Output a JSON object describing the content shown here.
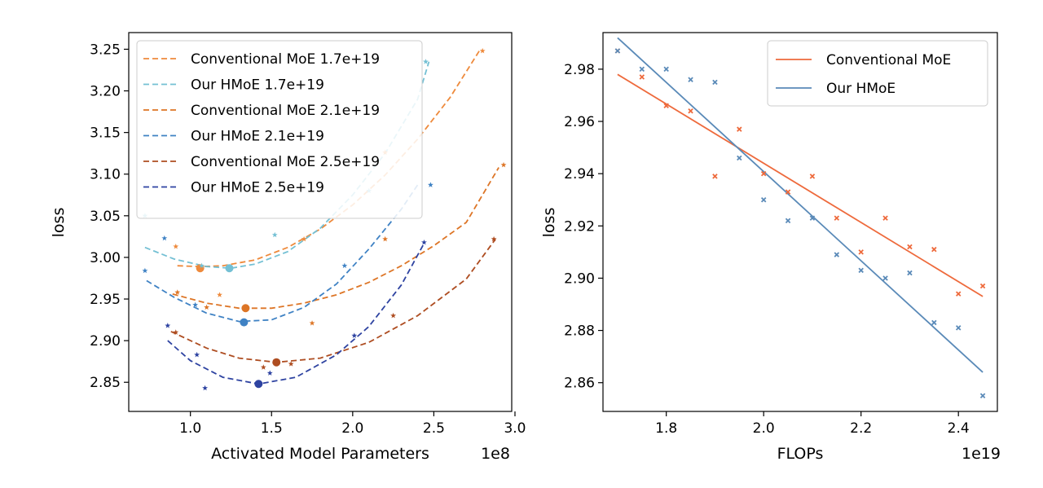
{
  "chart_data": [
    {
      "type": "scatter",
      "xlabel": "Activated Model Parameters",
      "ylabel": "loss",
      "x_offset_label": "1e8",
      "xlim": [
        0.62,
        2.98
      ],
      "ylim": [
        2.815,
        3.27
      ],
      "xticks": [
        1.0,
        1.5,
        2.0,
        2.5,
        3.0
      ],
      "xtick_labels": [
        "1.0",
        "1.5",
        "2.0",
        "2.5",
        "3.0"
      ],
      "yticks": [
        2.85,
        2.9,
        2.95,
        3.0,
        3.05,
        3.1,
        3.15,
        3.2,
        3.25
      ],
      "ytick_labels": [
        "2.85",
        "2.90",
        "2.95",
        "3.00",
        "3.05",
        "3.10",
        "3.15",
        "3.20",
        "3.25"
      ],
      "legend_position": "top-left",
      "series": [
        {
          "name": "Conventional MoE 1.7e+19",
          "color": "#ee8a3c",
          "points": [
            [
              0.91,
              3.013
            ],
            [
              1.18,
              2.955
            ],
            [
              1.7,
              3.022
            ],
            [
              2.2,
              3.126
            ],
            [
              2.8,
              3.248
            ]
          ],
          "fit": [
            [
              0.92,
              2.99
            ],
            [
              1.06,
              2.989
            ],
            [
              1.2,
              2.99
            ],
            [
              1.4,
              2.997
            ],
            [
              1.6,
              3.012
            ],
            [
              1.8,
              3.034
            ],
            [
              2.0,
              3.063
            ],
            [
              2.2,
              3.099
            ],
            [
              2.4,
              3.142
            ],
            [
              2.6,
              3.192
            ],
            [
              2.78,
              3.248
            ]
          ],
          "optimum": [
            1.06,
            2.987
          ]
        },
        {
          "name": "Our HMoE 1.7e+19",
          "color": "#74c0d4",
          "points": [
            [
              0.72,
              3.05
            ],
            [
              1.07,
              2.99
            ],
            [
              1.52,
              3.027
            ],
            [
              2.1,
              3.08
            ],
            [
              2.45,
              3.235
            ]
          ],
          "fit": [
            [
              0.72,
              3.012
            ],
            [
              0.9,
              2.998
            ],
            [
              1.1,
              2.989
            ],
            [
              1.25,
              2.987
            ],
            [
              1.4,
              2.992
            ],
            [
              1.6,
              3.007
            ],
            [
              1.8,
              3.035
            ],
            [
              2.0,
              3.075
            ],
            [
              2.2,
              3.125
            ],
            [
              2.4,
              3.19
            ],
            [
              2.47,
              3.235
            ]
          ],
          "optimum": [
            1.24,
            2.987
          ]
        },
        {
          "name": "Conventional MoE 2.1e+19",
          "color": "#dd7526",
          "points": [
            [
              0.92,
              2.958
            ],
            [
              1.1,
              2.94
            ],
            [
              1.75,
              2.921
            ],
            [
              2.2,
              3.022
            ],
            [
              2.93,
              3.111
            ]
          ],
          "fit": [
            [
              0.89,
              2.956
            ],
            [
              1.1,
              2.945
            ],
            [
              1.3,
              2.939
            ],
            [
              1.5,
              2.939
            ],
            [
              1.7,
              2.945
            ],
            [
              1.9,
              2.955
            ],
            [
              2.1,
              2.97
            ],
            [
              2.3,
              2.99
            ],
            [
              2.5,
              3.014
            ],
            [
              2.7,
              3.042
            ],
            [
              2.9,
              3.108
            ]
          ],
          "optimum": [
            1.34,
            2.939
          ]
        },
        {
          "name": "Our HMoE 2.1e+19",
          "color": "#3f82c4",
          "points": [
            [
              0.72,
              2.984
            ],
            [
              0.84,
              3.023
            ],
            [
              1.03,
              2.943
            ],
            [
              1.95,
              2.99
            ],
            [
              2.48,
              3.087
            ]
          ],
          "fit": [
            [
              0.73,
              2.972
            ],
            [
              0.9,
              2.952
            ],
            [
              1.1,
              2.933
            ],
            [
              1.3,
              2.923
            ],
            [
              1.5,
              2.925
            ],
            [
              1.7,
              2.94
            ],
            [
              1.9,
              2.968
            ],
            [
              2.1,
              3.01
            ],
            [
              2.3,
              3.058
            ],
            [
              2.4,
              3.087
            ]
          ],
          "optimum": [
            1.33,
            2.922
          ]
        },
        {
          "name": "Conventional MoE 2.5e+19",
          "color": "#ae4d21",
          "points": [
            [
              0.91,
              2.91
            ],
            [
              1.45,
              2.868
            ],
            [
              1.62,
              2.872
            ],
            [
              2.25,
              2.93
            ],
            [
              2.87,
              3.022
            ]
          ],
          "fit": [
            [
              0.88,
              2.911
            ],
            [
              1.1,
              2.891
            ],
            [
              1.3,
              2.879
            ],
            [
              1.53,
              2.874
            ],
            [
              1.8,
              2.879
            ],
            [
              2.1,
              2.898
            ],
            [
              2.4,
              2.93
            ],
            [
              2.7,
              2.974
            ],
            [
              2.88,
              3.022
            ]
          ],
          "optimum": [
            1.53,
            2.874
          ]
        },
        {
          "name": "Our HMoE 2.5e+19",
          "color": "#2e43a1",
          "points": [
            [
              0.86,
              2.918
            ],
            [
              1.04,
              2.883
            ],
            [
              1.09,
              2.843
            ],
            [
              1.49,
              2.861
            ],
            [
              2.01,
              2.906
            ],
            [
              2.44,
              3.018
            ]
          ],
          "fit": [
            [
              0.86,
              2.9
            ],
            [
              1.0,
              2.876
            ],
            [
              1.2,
              2.856
            ],
            [
              1.42,
              2.848
            ],
            [
              1.65,
              2.856
            ],
            [
              1.9,
              2.883
            ],
            [
              2.1,
              2.917
            ],
            [
              2.3,
              2.967
            ],
            [
              2.44,
              3.017
            ]
          ],
          "optimum": [
            1.42,
            2.848
          ]
        }
      ]
    },
    {
      "type": "scatter",
      "xlabel": "FLOPs",
      "ylabel": "loss",
      "x_offset_label": "1e19",
      "xlim": [
        1.67,
        2.48
      ],
      "ylim": [
        2.849,
        2.994
      ],
      "xticks": [
        1.8,
        2.0,
        2.2,
        2.4
      ],
      "xtick_labels": [
        "1.8",
        "2.0",
        "2.2",
        "2.4"
      ],
      "yticks": [
        2.86,
        2.88,
        2.9,
        2.92,
        2.94,
        2.96,
        2.98
      ],
      "ytick_labels": [
        "2.86",
        "2.88",
        "2.90",
        "2.92",
        "2.94",
        "2.96",
        "2.98"
      ],
      "legend_position": "top-right",
      "series": [
        {
          "name": "Conventional MoE",
          "color": "#ee6a3c",
          "points": [
            [
              1.7,
              2.987
            ],
            [
              1.75,
              2.977
            ],
            [
              1.8,
              2.966
            ],
            [
              1.85,
              2.964
            ],
            [
              1.9,
              2.939
            ],
            [
              1.95,
              2.957
            ],
            [
              2.0,
              2.94
            ],
            [
              2.05,
              2.933
            ],
            [
              2.1,
              2.939
            ],
            [
              2.15,
              2.923
            ],
            [
              2.2,
              2.91
            ],
            [
              2.25,
              2.923
            ],
            [
              2.3,
              2.912
            ],
            [
              2.35,
              2.911
            ],
            [
              2.4,
              2.894
            ],
            [
              2.45,
              2.897
            ]
          ],
          "line": [
            [
              1.7,
              2.978
            ],
            [
              2.45,
              2.893
            ]
          ]
        },
        {
          "name": "Our HMoE",
          "color": "#5a8ab8",
          "points": [
            [
              1.7,
              2.987
            ],
            [
              1.75,
              2.98
            ],
            [
              1.8,
              2.98
            ],
            [
              1.85,
              2.976
            ],
            [
              1.9,
              2.975
            ],
            [
              1.95,
              2.946
            ],
            [
              2.0,
              2.93
            ],
            [
              2.05,
              2.922
            ],
            [
              2.1,
              2.923
            ],
            [
              2.15,
              2.909
            ],
            [
              2.2,
              2.903
            ],
            [
              2.25,
              2.9
            ],
            [
              2.3,
              2.902
            ],
            [
              2.35,
              2.883
            ],
            [
              2.4,
              2.881
            ],
            [
              2.45,
              2.855
            ]
          ],
          "line": [
            [
              1.7,
              2.992
            ],
            [
              2.45,
              2.864
            ]
          ]
        }
      ]
    }
  ]
}
